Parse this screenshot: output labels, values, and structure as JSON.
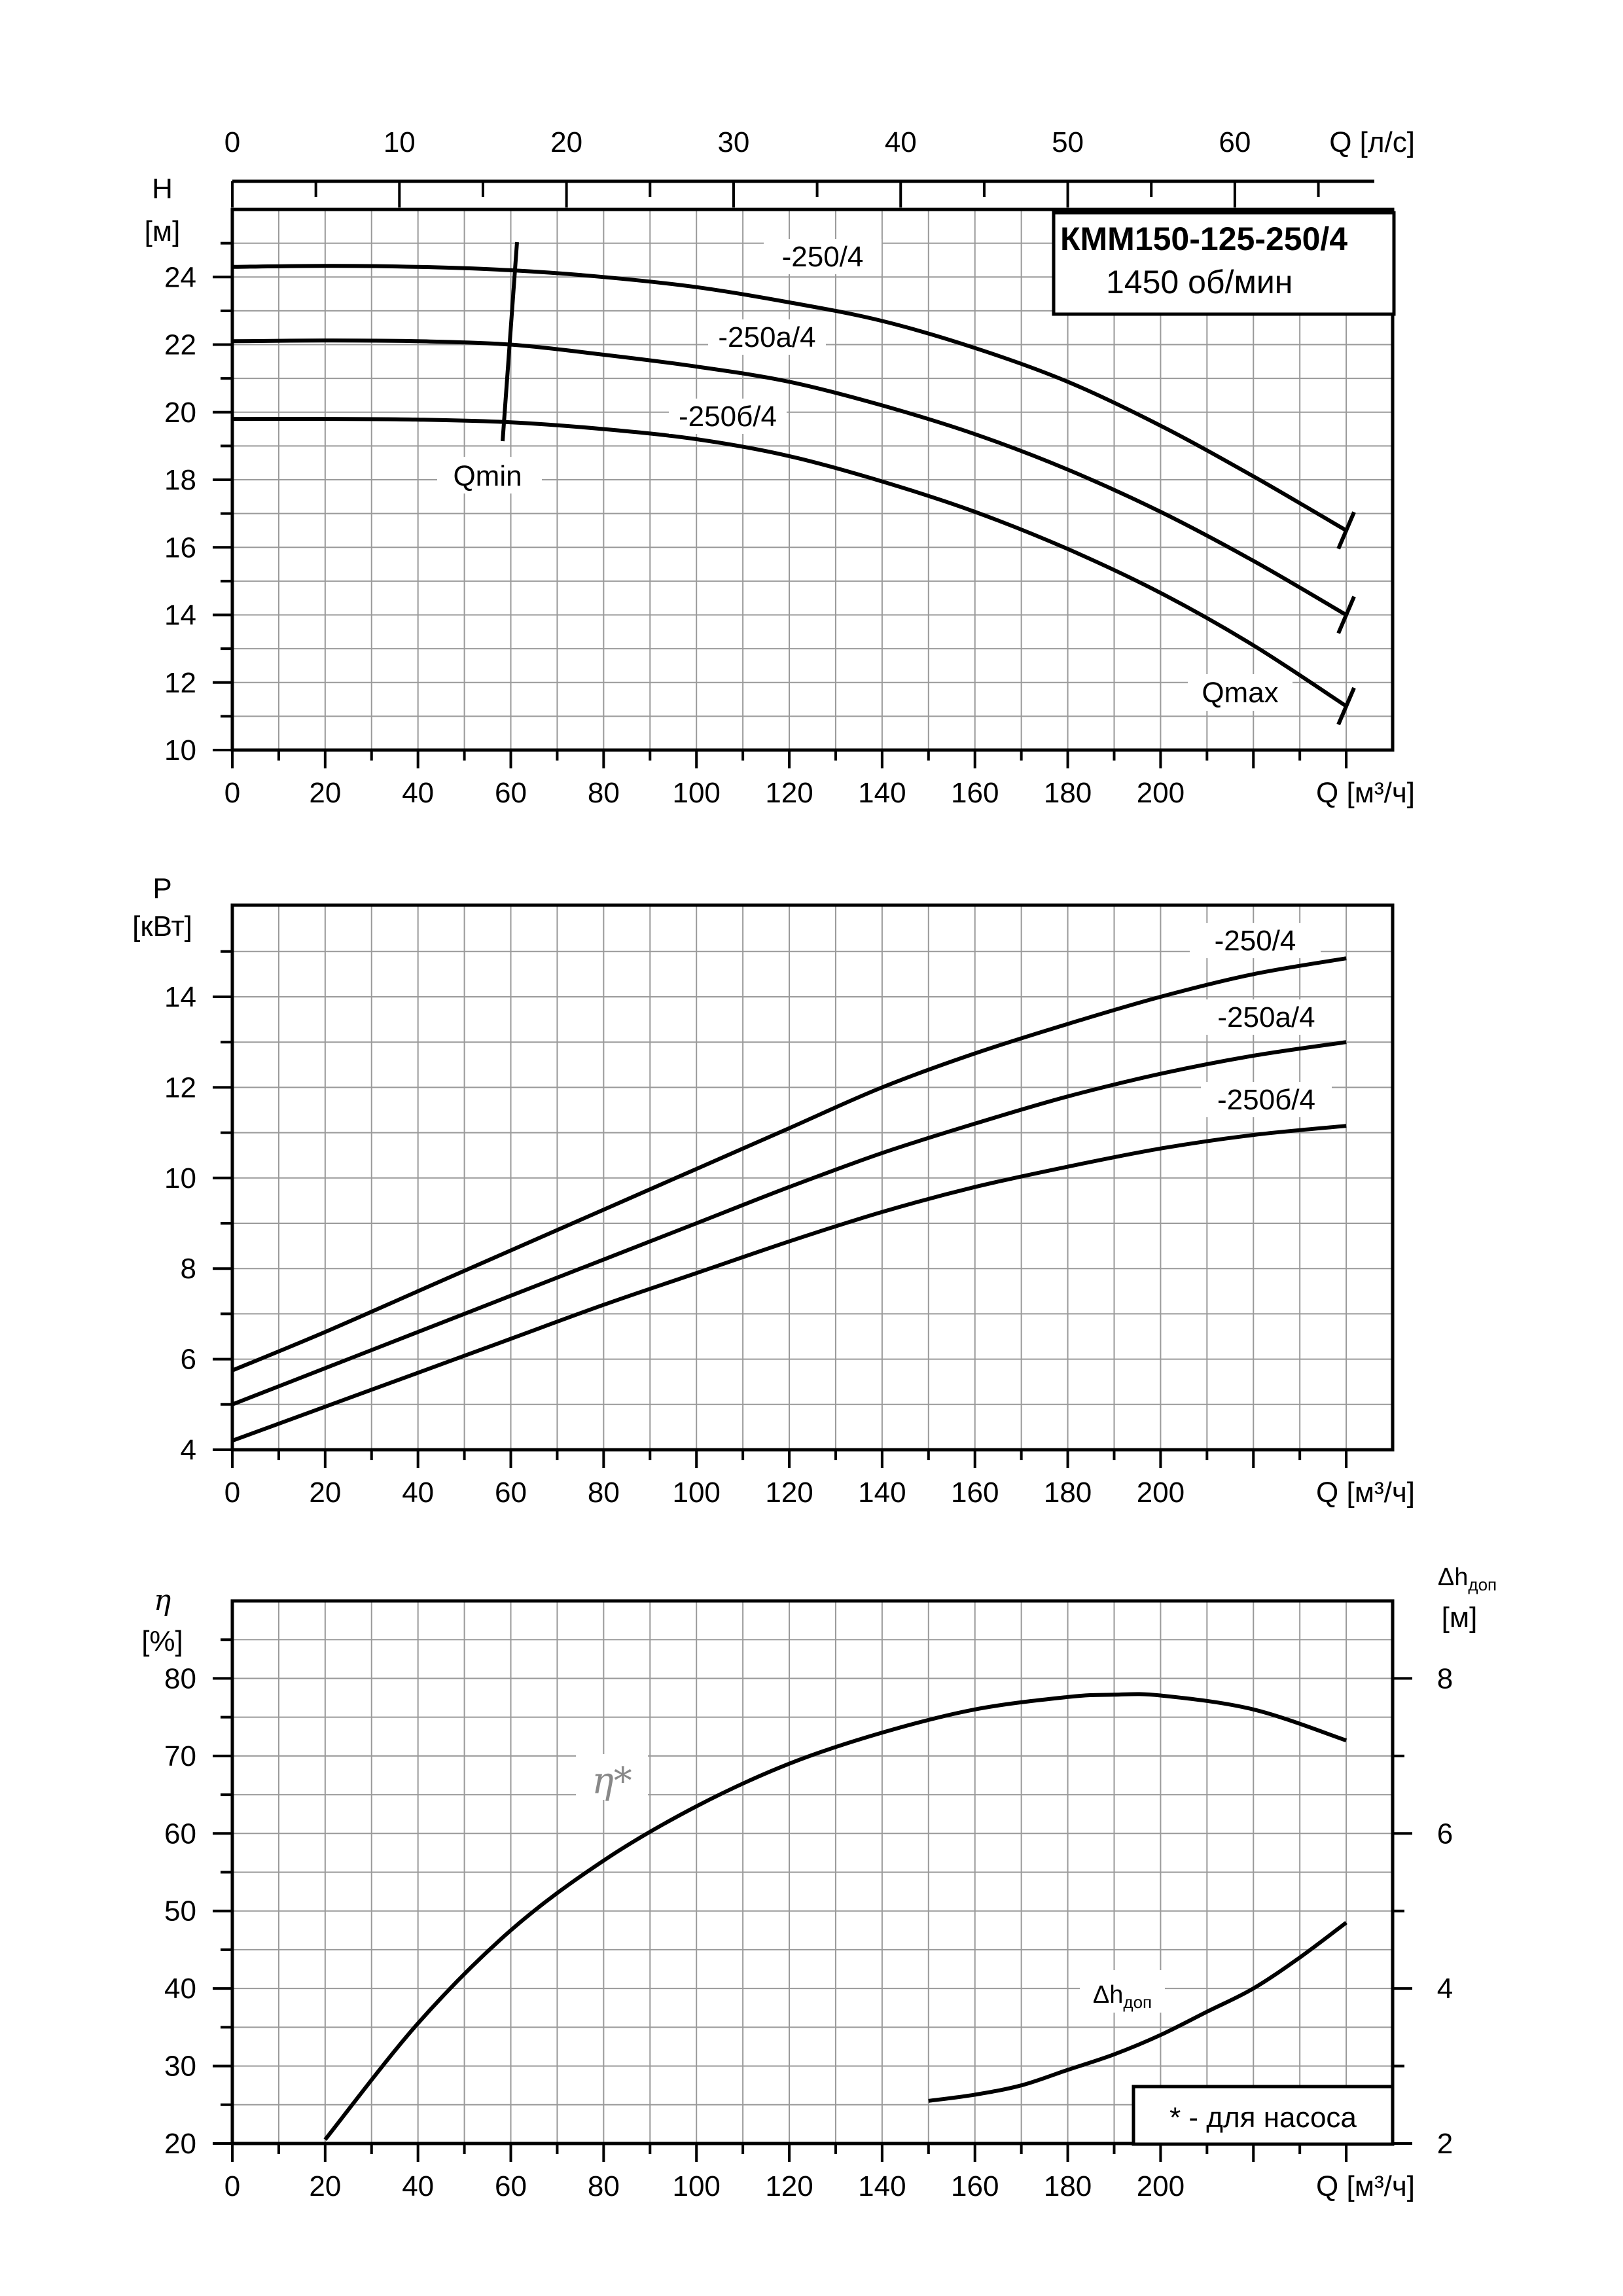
{
  "chart_data": [
    {
      "type": "line",
      "title": "КММ150-125-250/4",
      "subtitle": "1450 об/мин",
      "xlabel": "Q [м³/ч]",
      "x2label": "Q [л/с]",
      "ylabel_symbol": "H",
      "ylabel_unit": "[м]",
      "xlim": [
        0,
        250
      ],
      "ylim": [
        10,
        26
      ],
      "xticks": [
        0,
        20,
        40,
        60,
        80,
        100,
        120,
        140,
        160,
        180,
        200
      ],
      "x2ticks": [
        0,
        10,
        20,
        30,
        40,
        50,
        60
      ],
      "yticks": [
        10,
        12,
        14,
        16,
        18,
        20,
        22,
        24
      ],
      "grid": true,
      "annotations": [
        "Qmin",
        "Qmax"
      ],
      "series": [
        {
          "name": "-250/4",
          "x": [
            0,
            20,
            40,
            60,
            80,
            100,
            120,
            140,
            160,
            180,
            200,
            220,
            240
          ],
          "y": [
            24.3,
            24.33,
            24.3,
            24.2,
            24.0,
            23.7,
            23.25,
            22.7,
            21.9,
            20.9,
            19.6,
            18.1,
            16.5
          ]
        },
        {
          "name": "-250а/4",
          "x": [
            0,
            20,
            40,
            60,
            80,
            100,
            120,
            140,
            160,
            180,
            200,
            220,
            240
          ],
          "y": [
            22.1,
            22.12,
            22.1,
            22.0,
            21.7,
            21.35,
            20.9,
            20.2,
            19.35,
            18.3,
            17.05,
            15.6,
            14.0
          ]
        },
        {
          "name": "-250б/4",
          "x": [
            0,
            20,
            40,
            60,
            80,
            100,
            120,
            140,
            160,
            180,
            200,
            220,
            240
          ],
          "y": [
            19.8,
            19.8,
            19.78,
            19.7,
            19.5,
            19.2,
            18.7,
            17.95,
            17.05,
            15.95,
            14.65,
            13.1,
            11.3
          ]
        }
      ]
    },
    {
      "type": "line",
      "xlabel": "Q [м³/ч]",
      "ylabel_symbol": "P",
      "ylabel_unit": "[кВт]",
      "xlim": [
        0,
        250
      ],
      "ylim": [
        4,
        16
      ],
      "xticks": [
        0,
        20,
        40,
        60,
        80,
        100,
        120,
        140,
        160,
        180,
        200
      ],
      "yticks": [
        4,
        6,
        8,
        10,
        12,
        14
      ],
      "grid": true,
      "series": [
        {
          "name": "-250/4",
          "x": [
            0,
            20,
            40,
            60,
            80,
            100,
            120,
            140,
            160,
            180,
            200,
            220,
            240
          ],
          "y": [
            5.75,
            6.6,
            7.5,
            8.4,
            9.3,
            10.2,
            11.1,
            12.0,
            12.75,
            13.4,
            14.0,
            14.5,
            14.85
          ]
        },
        {
          "name": "-250а/4",
          "x": [
            0,
            20,
            40,
            60,
            80,
            100,
            120,
            140,
            160,
            180,
            200,
            220,
            240
          ],
          "y": [
            5.0,
            5.8,
            6.6,
            7.4,
            8.2,
            9.0,
            9.8,
            10.55,
            11.2,
            11.8,
            12.3,
            12.7,
            13.0
          ]
        },
        {
          "name": "-250б/4",
          "x": [
            0,
            20,
            40,
            60,
            80,
            100,
            120,
            140,
            160,
            180,
            200,
            220,
            240
          ],
          "y": [
            4.2,
            4.95,
            5.7,
            6.45,
            7.2,
            7.9,
            8.6,
            9.25,
            9.8,
            10.25,
            10.65,
            10.95,
            11.15
          ]
        }
      ]
    },
    {
      "type": "line",
      "xlabel": "Q [м³/ч]",
      "ylabel_symbol": "η",
      "ylabel_unit": "[%]",
      "y2label_symbol": "Δh",
      "y2label_sub": "доп",
      "y2label_unit": "[м]",
      "xlim": [
        0,
        250
      ],
      "ylim": [
        20,
        90
      ],
      "y2lim": [
        2,
        9
      ],
      "xticks": [
        0,
        20,
        40,
        60,
        80,
        100,
        120,
        140,
        160,
        180,
        200
      ],
      "yticks": [
        20,
        30,
        40,
        50,
        60,
        70,
        80
      ],
      "y2ticks": [
        2,
        4,
        6,
        8
      ],
      "grid": true,
      "note": "* - для насоса",
      "series": [
        {
          "name": "η*",
          "axis": "left",
          "x": [
            20,
            40,
            60,
            80,
            100,
            120,
            140,
            160,
            180,
            190,
            200,
            220,
            240
          ],
          "y": [
            20.5,
            35.5,
            47.5,
            56.5,
            63.5,
            69.0,
            73.0,
            76.0,
            77.6,
            77.9,
            77.8,
            76.0,
            72.0
          ]
        },
        {
          "name": "Δh",
          "name_sub": "доп",
          "axis": "right",
          "x": [
            150,
            160,
            170,
            180,
            190,
            200,
            210,
            220,
            230,
            240
          ],
          "y": [
            2.55,
            2.63,
            2.75,
            2.95,
            3.15,
            3.4,
            3.7,
            4.0,
            4.4,
            4.85
          ]
        }
      ]
    }
  ]
}
